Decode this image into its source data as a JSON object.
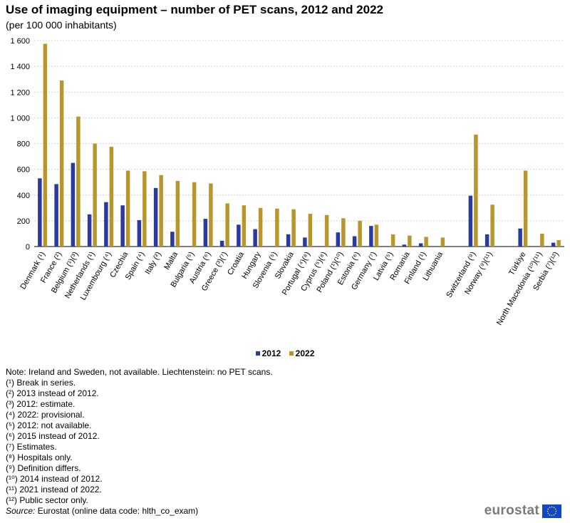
{
  "chart_data": {
    "type": "bar",
    "title": "Use of imaging equipment – number of PET scans, 2012 and 2022",
    "subtitle": "(per 100 000 inhabitants)",
    "ylim": [
      0,
      1600
    ],
    "yticks": [
      0,
      200,
      400,
      600,
      800,
      1000,
      1200,
      1400,
      1600
    ],
    "ytick_labels": [
      "0",
      "200",
      "400",
      "600",
      "800",
      "1 000",
      "1 200",
      "1 400",
      "1 600"
    ],
    "grid": true,
    "legend_position": "bottom",
    "categories": [
      "Denmark (¹)",
      "France (²)",
      "Belgium (¹)(³)",
      "Netherlands (¹)",
      "Luxembourg (⁴)",
      "Czechia",
      "Spain (⁴)",
      "Italy (²)",
      "Malta",
      "Bulgaria (⁵)",
      "Austria (⁶)",
      "Greece (³)(⁷)",
      "Croatia",
      "Hungary",
      "Slovenia (⁵)",
      "Slovakia",
      "Portugal (⁴)(⁸)",
      "Cyprus (⁵)(⁸)",
      "Poland (¹)(¹⁰)",
      "Estonia (⁶)",
      "Germany (⁷)",
      "Latvia (⁵)",
      "Romania",
      "Finland (¹)",
      "Lithuania",
      "",
      "Switzerland (⁹)",
      "Norway (⁹)(¹¹)",
      "",
      "Türkiye",
      "North Macedonia (¹⁰)(¹¹)",
      "Serbia (⁷)(¹²)"
    ],
    "series": [
      {
        "name": "2012",
        "color": "#2b3a9e",
        "values": [
          530,
          485,
          650,
          250,
          345,
          320,
          205,
          455,
          115,
          null,
          215,
          45,
          170,
          135,
          null,
          95,
          70,
          null,
          110,
          80,
          160,
          null,
          15,
          25,
          null,
          null,
          395,
          95,
          null,
          140,
          null,
          30
        ]
      },
      {
        "name": "2022",
        "color": "#b9962c",
        "values": [
          1575,
          1290,
          1010,
          800,
          775,
          590,
          585,
          555,
          510,
          500,
          490,
          335,
          320,
          300,
          295,
          290,
          255,
          245,
          220,
          200,
          170,
          95,
          85,
          75,
          70,
          null,
          870,
          325,
          null,
          590,
          100,
          50
        ]
      }
    ]
  },
  "legend": {
    "items": [
      {
        "label": "2012",
        "color": "#2b3a9e"
      },
      {
        "label": "2022",
        "color": "#b9962c"
      }
    ]
  },
  "notes": {
    "main": "Note: Ireland and Sweden, not available. Liechtenstein: no PET scans.",
    "footnotes": [
      "(¹) Break in series.",
      "(²) 2013 instead of 2012.",
      "(³) 2012: estimate.",
      "(⁴) 2022: provisional.",
      "(⁵) 2012: not available.",
      "(⁶) 2015 instead of 2012.",
      "(⁷) Estimates.",
      "(⁸) Hospitals only.",
      "(⁹) Definition differs.",
      "(¹⁰) 2014 instead of 2012.",
      "(¹¹) 2021 instead of 2022.",
      "(¹²) Public sector only."
    ],
    "source_label": "Source:",
    "source_text": " Eurostat (online data code: hlth_co_exam)"
  },
  "logo": {
    "text": "eurostat",
    "flag_color": "#0e47cb",
    "star_color": "#ffcc00"
  }
}
